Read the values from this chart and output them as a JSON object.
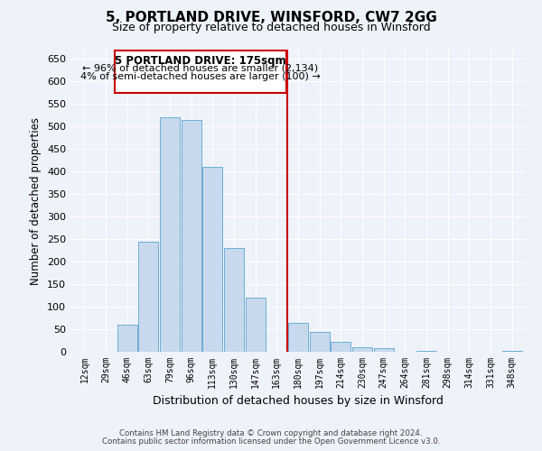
{
  "title": "5, PORTLAND DRIVE, WINSFORD, CW7 2GG",
  "subtitle": "Size of property relative to detached houses in Winsford",
  "xlabel": "Distribution of detached houses by size in Winsford",
  "ylabel": "Number of detached properties",
  "bar_labels": [
    "12sqm",
    "29sqm",
    "46sqm",
    "63sqm",
    "79sqm",
    "96sqm",
    "113sqm",
    "130sqm",
    "147sqm",
    "163sqm",
    "180sqm",
    "197sqm",
    "214sqm",
    "230sqm",
    "247sqm",
    "264sqm",
    "281sqm",
    "298sqm",
    "314sqm",
    "331sqm",
    "348sqm"
  ],
  "bar_values": [
    0,
    0,
    60,
    245,
    520,
    515,
    410,
    230,
    120,
    0,
    65,
    45,
    22,
    10,
    8,
    0,
    3,
    0,
    0,
    0,
    2
  ],
  "bar_color": "#c8d9ed",
  "bar_edge_color": "#6aaed6",
  "vline_x_index": 10,
  "vline_color": "#cc0000",
  "ylim": [
    0,
    670
  ],
  "yticks": [
    0,
    50,
    100,
    150,
    200,
    250,
    300,
    350,
    400,
    450,
    500,
    550,
    600,
    650
  ],
  "annotation_title": "5 PORTLAND DRIVE: 175sqm",
  "annotation_line1": "← 96% of detached houses are smaller (2,134)",
  "annotation_line2": "4% of semi-detached houses are larger (100) →",
  "annotation_box_color": "#ffffff",
  "annotation_box_edge": "#cc0000",
  "footer1": "Contains HM Land Registry data © Crown copyright and database right 2024.",
  "footer2": "Contains public sector information licensed under the Open Government Licence v3.0.",
  "bg_color": "#eef2f9",
  "grid_color": "#ffffff"
}
